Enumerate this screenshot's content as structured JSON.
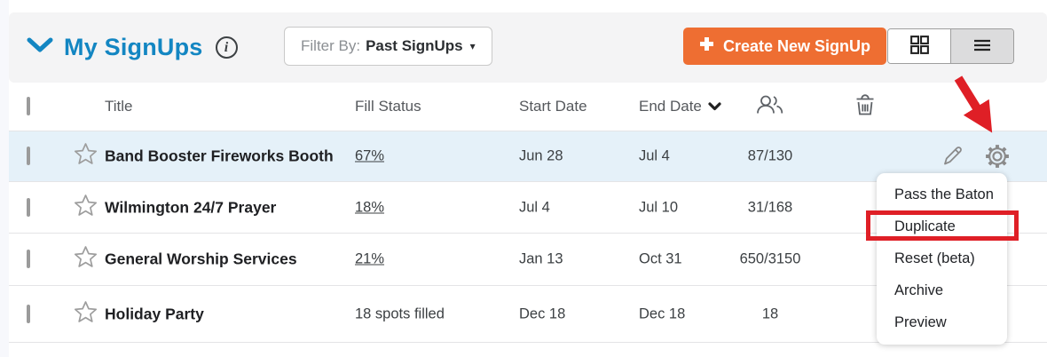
{
  "header": {
    "title": "My SignUps",
    "filter_prefix": "Filter By:",
    "filter_value": "Past SignUps",
    "filter_caret": "▾",
    "create_label": "Create New SignUp"
  },
  "columns": {
    "title": "Title",
    "fill_status": "Fill Status",
    "start_date": "Start Date",
    "end_date": "End Date"
  },
  "rows": [
    {
      "title": "Band Booster Fireworks Booth",
      "fill_label": "67%",
      "fill_pct": 67,
      "start": "Jun 28",
      "end": "Jul 4",
      "count": "87/130",
      "highlighted": true
    },
    {
      "title": "Wilmington 24/7 Prayer",
      "fill_label": "18%",
      "fill_pct": 18,
      "start": "Jul 4",
      "end": "Jul 10",
      "count": "31/168",
      "highlighted": false
    },
    {
      "title": "General Worship Services",
      "fill_label": "21%",
      "fill_pct": 21,
      "start": "Jan 13",
      "end": "Oct 31",
      "count": "650/3150",
      "highlighted": false
    },
    {
      "title": "Holiday Party",
      "fill_label": "18 spots filled",
      "fill_pct": null,
      "start": "Dec 18",
      "end": "Dec 18",
      "count": "18",
      "highlighted": false
    }
  ],
  "menu": {
    "items": [
      "Pass the Baton",
      "Duplicate",
      "Reset (beta)",
      "Archive",
      "Preview"
    ],
    "highlighted_item": "Duplicate"
  },
  "colors": {
    "brand_blue": "#1386c2",
    "brand_orange": "#ee6e32",
    "progress_fill": "#7ac142",
    "progress_track": "#cdefb4",
    "row_highlight": "#e5f1f9",
    "annotation_red": "#df1f26"
  }
}
